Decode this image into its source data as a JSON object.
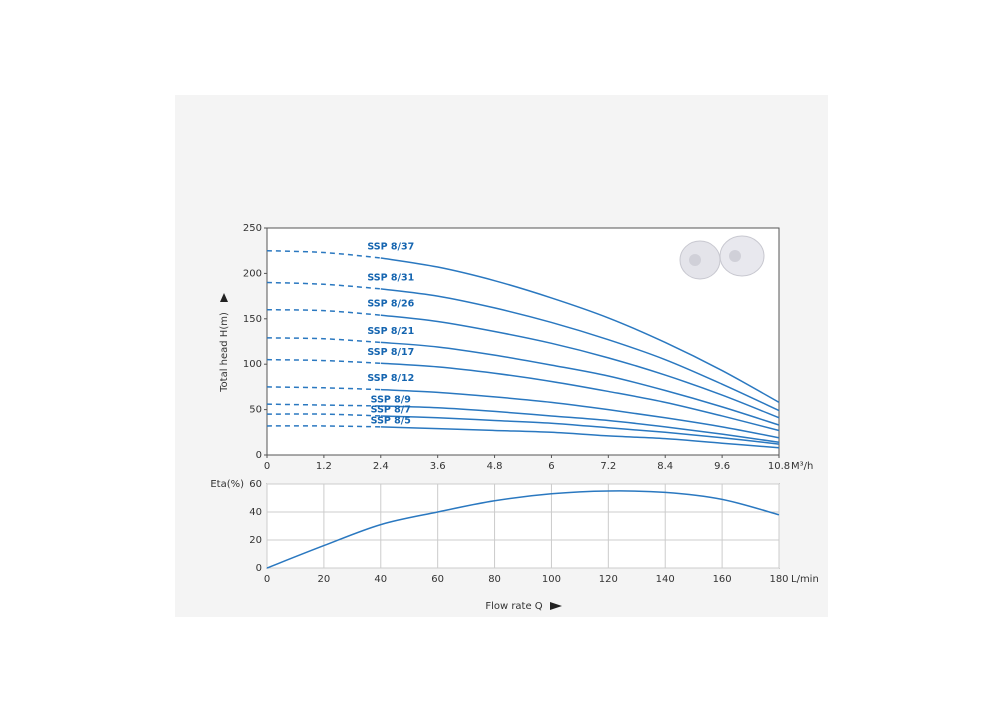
{
  "chart_data": [
    {
      "type": "line",
      "ylabel": "Total head H(m)",
      "x_unit": "M³/h",
      "x": [
        0,
        1.2,
        2.4,
        3.6,
        4.8,
        6,
        7.2,
        8.4,
        9.6,
        10.8
      ],
      "xlim": [
        0,
        10.8
      ],
      "xticks": [
        0,
        1.2,
        2.4,
        3.6,
        4.8,
        6,
        7.2,
        8.4,
        9.6,
        10.8
      ],
      "ylim": [
        0,
        250
      ],
      "yticks": [
        0,
        50,
        100,
        150,
        200,
        250
      ],
      "grid": false,
      "dashed_range": [
        0,
        2.4
      ],
      "label_color": "#1565b0",
      "series": [
        {
          "name": "SSP 8/37",
          "color": "#2a78c0",
          "values": [
            225,
            223,
            217,
            207,
            192,
            173,
            151,
            124,
            93,
            58
          ]
        },
        {
          "name": "SSP 8/31",
          "color": "#2a78c0",
          "values": [
            190,
            188,
            183,
            175,
            162,
            146,
            127,
            105,
            78,
            49
          ]
        },
        {
          "name": "SSP 8/26",
          "color": "#2a78c0",
          "values": [
            160,
            159,
            154,
            147,
            136,
            123,
            107,
            88,
            66,
            41
          ]
        },
        {
          "name": "SSP 8/21",
          "color": "#2a78c0",
          "values": [
            129,
            128,
            124,
            119,
            110,
            99,
            87,
            71,
            53,
            33
          ]
        },
        {
          "name": "SSP 8/17",
          "color": "#2a78c0",
          "values": [
            105,
            104,
            101,
            97,
            90,
            81,
            70,
            58,
            43,
            27
          ]
        },
        {
          "name": "SSP 8/12",
          "color": "#2a78c0",
          "values": [
            75,
            74,
            72,
            69,
            64,
            58,
            50,
            41,
            31,
            19
          ]
        },
        {
          "name": "SSP 8/9",
          "color": "#2a78c0",
          "values": [
            56,
            55,
            54,
            52,
            48,
            43,
            38,
            31,
            23,
            14
          ]
        },
        {
          "name": "SSP 8/7",
          "color": "#2a78c0",
          "values": [
            45,
            45,
            43,
            41,
            38,
            35,
            30,
            25,
            19,
            12
          ]
        },
        {
          "name": "SSP 8/5",
          "color": "#2a78c0",
          "values": [
            32,
            32,
            31,
            29,
            27,
            25,
            21,
            18,
            13,
            8
          ]
        }
      ]
    },
    {
      "type": "line",
      "ylabel": "Eta(%)",
      "x_unit": "L/min",
      "xlabel": "Flow rate Q",
      "x": [
        0,
        20,
        40,
        60,
        80,
        100,
        120,
        140,
        160,
        180
      ],
      "xlim": [
        0,
        180
      ],
      "xticks": [
        0,
        20,
        40,
        60,
        80,
        100,
        120,
        140,
        160,
        180
      ],
      "ylim": [
        0,
        60
      ],
      "yticks": [
        0,
        20,
        40,
        60
      ],
      "grid": true,
      "series": [
        {
          "name": "Eta",
          "color": "#2a78c0",
          "values": [
            0,
            16,
            31,
            40,
            48,
            53,
            55,
            54,
            49,
            38
          ]
        }
      ]
    }
  ]
}
